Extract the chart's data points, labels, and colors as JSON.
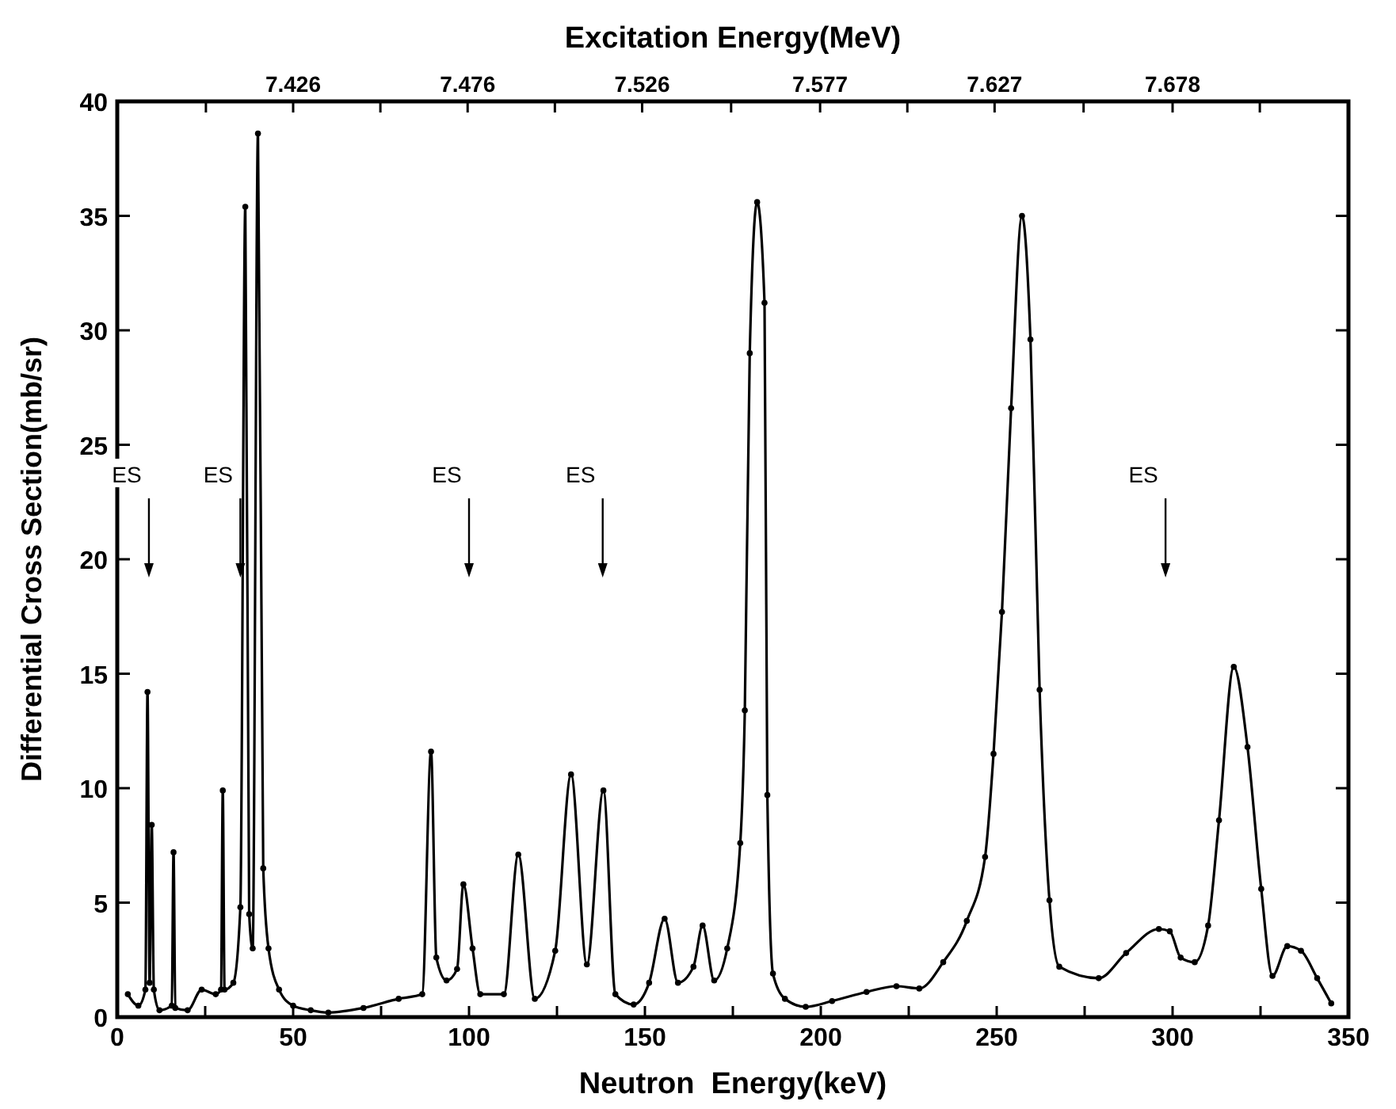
{
  "chart_data": {
    "type": "line",
    "xlabel": "Neutron  Energy(keV)",
    "ylabel": "Differential Cross Section(mb/sr)",
    "x2label": "Excitation Energy(MeV)",
    "xlim": [
      0,
      350
    ],
    "xticks": [
      0,
      {
        "value": 25,
        "label": null
      },
      50,
      {
        "value": 75,
        "label": null
      },
      100,
      {
        "value": 125,
        "label": null
      },
      150,
      {
        "value": 175,
        "label": null
      },
      200,
      {
        "value": 225,
        "label": null
      },
      250,
      {
        "value": 275,
        "label": null
      },
      300,
      {
        "value": 325,
        "label": null
      },
      350
    ],
    "ylim": [
      0,
      40
    ],
    "yticks": [
      0,
      5,
      10,
      15,
      20,
      25,
      30,
      35,
      40
    ],
    "x2lim": [
      7.3756,
      7.7284
    ],
    "x2ticks": [
      {
        "value": 7.401,
        "label": null
      },
      7.426,
      {
        "value": 7.451,
        "label": null
      },
      7.476,
      {
        "value": 7.501,
        "label": null
      },
      7.526,
      {
        "value": 7.5515,
        "label": null
      },
      7.577,
      {
        "value": 7.602,
        "label": null
      },
      7.627,
      {
        "value": 7.6525,
        "label": null
      },
      7.678,
      {
        "value": 7.703,
        "label": null
      }
    ],
    "grid": false,
    "marker": "circle",
    "line_style": "solid",
    "series": [
      {
        "color": "#000000",
        "x": [
          3,
          6,
          8,
          8.6,
          9.2,
          9.8,
          10.4,
          12,
          15.5,
          16,
          16.5,
          20,
          24,
          28,
          29.5,
          30,
          30.5,
          33,
          35,
          36.4,
          37.5,
          38.5,
          40,
          41.5,
          43,
          46,
          50,
          55,
          60,
          70,
          80,
          86.7,
          89.2,
          90.7,
          93.6,
          96.6,
          98.4,
          101,
          103.2,
          109.9,
          114,
          118.7,
          124.5,
          129,
          133.5,
          138.2,
          141.6,
          146.8,
          151.2,
          155.6,
          159.4,
          163.8,
          166.4,
          169.7,
          173.4,
          177.1,
          178.4,
          179.8,
          181.9,
          184,
          184.8,
          186.4,
          189.8,
          195.7,
          203.2,
          213,
          221.5,
          228,
          234.8,
          241.5,
          246.7,
          249.1,
          251.5,
          254.1,
          257.2,
          259.6,
          262.2,
          265,
          267.8,
          279,
          286.8,
          296.1,
          299.2,
          302.3,
          306.3,
          310.1,
          313.2,
          317.4,
          321.3,
          325.2,
          328.4,
          332.6,
          336.5,
          341.1,
          345.1
        ],
        "values": [
          1.0,
          0.5,
          1.2,
          14.2,
          1.5,
          8.4,
          1.2,
          0.3,
          0.5,
          7.2,
          0.4,
          0.3,
          1.2,
          1.0,
          1.2,
          9.9,
          1.2,
          1.5,
          4.8,
          35.4,
          4.5,
          3.0,
          38.6,
          6.5,
          3.0,
          1.2,
          0.5,
          0.3,
          0.2,
          0.4,
          0.8,
          1.0,
          11.6,
          2.6,
          1.6,
          2.1,
          5.8,
          3.0,
          1.0,
          1.0,
          7.1,
          0.8,
          2.9,
          10.6,
          2.3,
          9.9,
          1.0,
          0.55,
          1.5,
          4.3,
          1.5,
          2.2,
          4.0,
          1.6,
          3.0,
          7.6,
          13.4,
          29.0,
          35.6,
          31.2,
          9.7,
          1.9,
          0.8,
          0.45,
          0.7,
          1.1,
          1.35,
          1.25,
          2.4,
          4.2,
          7.0,
          11.5,
          17.7,
          26.6,
          35.0,
          29.6,
          14.3,
          5.1,
          2.2,
          1.7,
          2.8,
          3.85,
          3.75,
          2.6,
          2.4,
          4.0,
          8.6,
          15.3,
          11.8,
          5.6,
          1.8,
          3.1,
          2.9,
          1.7,
          0.6
        ]
      }
    ],
    "ref_lines": [
      {
        "axis": "x",
        "value": 9,
        "label": "ES"
      },
      {
        "axis": "x",
        "value": 35,
        "label": "ES"
      },
      {
        "axis": "x",
        "value": 100,
        "label": "ES"
      },
      {
        "axis": "x",
        "value": 138,
        "label": "ES"
      },
      {
        "axis": "x",
        "value": 298,
        "label": "ES"
      }
    ]
  }
}
